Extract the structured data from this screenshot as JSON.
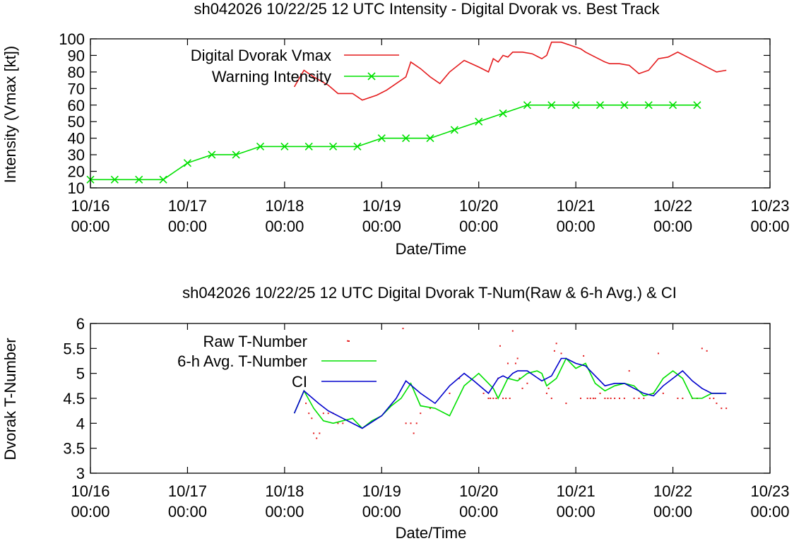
{
  "chart_data": [
    {
      "type": "line",
      "title": "sh042026 10/22/25  12 UTC Intensity - Digital Dvorak vs. Best Track",
      "xlabel": "Date/Time",
      "ylabel": "Intensity (Vmax [kt])",
      "ylim": [
        10,
        100
      ],
      "xlim_days": [
        0,
        7
      ],
      "yticks": [
        "10",
        "20",
        "30",
        "40",
        "50",
        "60",
        "70",
        "80",
        "90",
        "100"
      ],
      "xticks": [
        {
          "date": "10/16",
          "time": "00:00"
        },
        {
          "date": "10/17",
          "time": "00:00"
        },
        {
          "date": "10/18",
          "time": "00:00"
        },
        {
          "date": "10/19",
          "time": "00:00"
        },
        {
          "date": "10/20",
          "time": "00:00"
        },
        {
          "date": "10/21",
          "time": "00:00"
        },
        {
          "date": "10/22",
          "time": "00:00"
        },
        {
          "date": "10/23",
          "time": "00:00"
        }
      ],
      "legend": [
        {
          "label": "Digital Dvorak Vmax",
          "color": "#e41a1c",
          "marker": "none"
        },
        {
          "label": "Warning Intensity",
          "color": "#00e000",
          "marker": "x"
        }
      ],
      "series": [
        {
          "name": "Digital Dvorak Vmax",
          "color": "#e41a1c",
          "x": [
            2.1,
            2.2,
            2.3,
            2.45,
            2.55,
            2.7,
            2.8,
            2.95,
            3.05,
            3.25,
            3.3,
            3.4,
            3.5,
            3.6,
            3.7,
            3.85,
            4.0,
            4.1,
            4.15,
            4.2,
            4.25,
            4.3,
            4.35,
            4.45,
            4.55,
            4.65,
            4.7,
            4.75,
            4.85,
            4.95,
            5.0,
            5.05,
            5.1,
            5.2,
            5.3,
            5.35,
            5.45,
            5.55,
            5.65,
            5.75,
            5.85,
            5.95,
            6.05,
            6.15,
            6.25,
            6.35,
            6.45,
            6.55
          ],
          "y": [
            71,
            81,
            77,
            72,
            67,
            67,
            63,
            66,
            69,
            77,
            86,
            82,
            77,
            73,
            80,
            87,
            83,
            80,
            88,
            86,
            90,
            89,
            92,
            92,
            91,
            88,
            90,
            98,
            98,
            96,
            95,
            94,
            92,
            89,
            86,
            85,
            85,
            84,
            79,
            81,
            88,
            89,
            92,
            89,
            86,
            83,
            80,
            81
          ]
        },
        {
          "name": "Warning Intensity",
          "color": "#00e000",
          "x": [
            0.0,
            0.25,
            0.5,
            0.75,
            1.0,
            1.25,
            1.5,
            1.75,
            2.0,
            2.25,
            2.5,
            2.75,
            3.0,
            3.25,
            3.5,
            3.75,
            4.0,
            4.25,
            4.5,
            4.75,
            5.0,
            5.25,
            5.5,
            5.75,
            6.0,
            6.25
          ],
          "y": [
            15,
            15,
            15,
            15,
            25,
            30,
            30,
            35,
            35,
            35,
            35,
            35,
            40,
            40,
            40,
            45,
            50,
            55,
            60,
            60,
            60,
            60,
            60,
            60,
            60,
            60
          ]
        }
      ]
    },
    {
      "type": "line",
      "title": "sh042026 10/22/25  12 UTC Digital Dvorak T-Num(Raw & 6-h Avg.) & CI",
      "xlabel": "Date/Time",
      "ylabel": "Dvorak T-Number",
      "ylim": [
        3,
        6
      ],
      "xlim_days": [
        0,
        7
      ],
      "yticks": [
        "3",
        "3.5",
        "4",
        "4.5",
        "5",
        "5.5",
        "6"
      ],
      "xticks": [
        {
          "date": "10/16",
          "time": "00:00"
        },
        {
          "date": "10/17",
          "time": "00:00"
        },
        {
          "date": "10/18",
          "time": "00:00"
        },
        {
          "date": "10/19",
          "time": "00:00"
        },
        {
          "date": "10/20",
          "time": "00:00"
        },
        {
          "date": "10/21",
          "time": "00:00"
        },
        {
          "date": "10/22",
          "time": "00:00"
        },
        {
          "date": "10/23",
          "time": "00:00"
        }
      ],
      "legend": [
        {
          "label": "Raw T-Number",
          "color": "#e41a1c",
          "marker": "dot"
        },
        {
          "label": "6-h Avg. T-Number",
          "color": "#00e000",
          "marker": "none"
        },
        {
          "label": "CI",
          "color": "#0000cc",
          "marker": "none"
        }
      ],
      "series": [
        {
          "name": "Raw T-Number",
          "color": "#e41a1c",
          "x": [
            2.22,
            2.25,
            2.28,
            2.3,
            2.33,
            2.36,
            2.4,
            2.45,
            2.5,
            2.55,
            2.6,
            2.65,
            3.22,
            3.25,
            3.3,
            3.33,
            3.36,
            3.4,
            3.5,
            3.7,
            3.8,
            4.05,
            4.1,
            4.12,
            4.15,
            4.18,
            4.2,
            4.22,
            4.25,
            4.28,
            4.3,
            4.32,
            4.35,
            4.38,
            4.4,
            4.42,
            4.45,
            4.5,
            4.7,
            4.72,
            4.75,
            4.78,
            4.8,
            4.85,
            4.9,
            5.05,
            5.08,
            5.12,
            5.15,
            5.18,
            5.2,
            5.25,
            5.3,
            5.33,
            5.36,
            5.4,
            5.45,
            5.5,
            5.55,
            5.6,
            5.65,
            5.7,
            5.8,
            5.85,
            5.9,
            6.05,
            6.1,
            6.2,
            6.25,
            6.3,
            6.35,
            6.38,
            6.42,
            6.45,
            6.5,
            6.55
          ],
          "y": [
            4.4,
            4.2,
            4.1,
            3.8,
            3.7,
            3.8,
            4.2,
            4.2,
            4.2,
            4.0,
            4.0,
            5.65,
            5.9,
            4.0,
            4.0,
            3.8,
            4.0,
            4.2,
            4.3,
            4.6,
            4.9,
            4.6,
            4.5,
            4.5,
            4.5,
            4.5,
            4.9,
            5.55,
            4.5,
            4.5,
            5.2,
            4.5,
            5.85,
            5.2,
            5.3,
            4.9,
            4.7,
            4.8,
            4.6,
            4.7,
            4.5,
            5.45,
            5.6,
            5.4,
            4.4,
            4.5,
            5.35,
            4.5,
            4.5,
            4.5,
            4.5,
            4.6,
            4.5,
            4.5,
            4.5,
            4.5,
            4.5,
            4.5,
            5.05,
            4.5,
            4.5,
            4.5,
            4.6,
            5.4,
            4.6,
            4.5,
            4.5,
            4.5,
            4.5,
            5.5,
            5.45,
            4.5,
            4.5,
            4.4,
            4.3,
            4.3
          ]
        },
        {
          "name": "6-h Avg. T-Number",
          "color": "#00e000",
          "x": [
            2.1,
            2.2,
            2.3,
            2.4,
            2.5,
            2.6,
            2.7,
            2.8,
            2.9,
            3.0,
            3.1,
            3.2,
            3.3,
            3.4,
            3.55,
            3.7,
            3.85,
            4.0,
            4.1,
            4.15,
            4.2,
            4.3,
            4.4,
            4.5,
            4.6,
            4.65,
            4.7,
            4.8,
            4.9,
            5.0,
            5.1,
            5.2,
            5.3,
            5.4,
            5.5,
            5.6,
            5.7,
            5.8,
            5.9,
            6.0,
            6.1,
            6.2,
            6.3,
            6.4,
            6.5
          ],
          "y": [
            4.2,
            4.65,
            4.3,
            4.05,
            4.0,
            4.05,
            4.1,
            3.9,
            4.05,
            4.15,
            4.35,
            4.5,
            4.8,
            4.35,
            4.3,
            4.15,
            4.75,
            5.0,
            4.8,
            4.7,
            4.5,
            4.9,
            4.85,
            5.0,
            5.05,
            5.0,
            4.75,
            4.9,
            5.3,
            5.1,
            5.2,
            4.8,
            4.65,
            4.75,
            4.8,
            4.75,
            4.55,
            4.6,
            4.9,
            5.05,
            4.9,
            4.5,
            4.5,
            4.6,
            4.6
          ]
        },
        {
          "name": "CI",
          "color": "#0000cc",
          "x": [
            2.1,
            2.2,
            2.35,
            2.45,
            2.6,
            2.8,
            3.0,
            3.15,
            3.25,
            3.4,
            3.55,
            3.7,
            3.85,
            3.95,
            4.1,
            4.2,
            4.25,
            4.3,
            4.35,
            4.4,
            4.5,
            4.65,
            4.75,
            4.85,
            4.9,
            5.0,
            5.1,
            5.2,
            5.3,
            5.4,
            5.5,
            5.6,
            5.7,
            5.8,
            5.9,
            6.0,
            6.1,
            6.2,
            6.3,
            6.4,
            6.5,
            6.55
          ],
          "y": [
            4.2,
            4.65,
            4.4,
            4.25,
            4.1,
            3.9,
            4.15,
            4.5,
            4.85,
            4.6,
            4.4,
            4.75,
            5.0,
            4.85,
            4.6,
            4.9,
            4.95,
            4.9,
            5.0,
            5.05,
            5.05,
            4.85,
            4.95,
            5.3,
            5.3,
            5.2,
            5.15,
            4.95,
            4.75,
            4.8,
            4.8,
            4.7,
            4.6,
            4.55,
            4.75,
            4.9,
            5.05,
            4.85,
            4.7,
            4.6,
            4.6,
            4.6
          ]
        }
      ]
    }
  ]
}
